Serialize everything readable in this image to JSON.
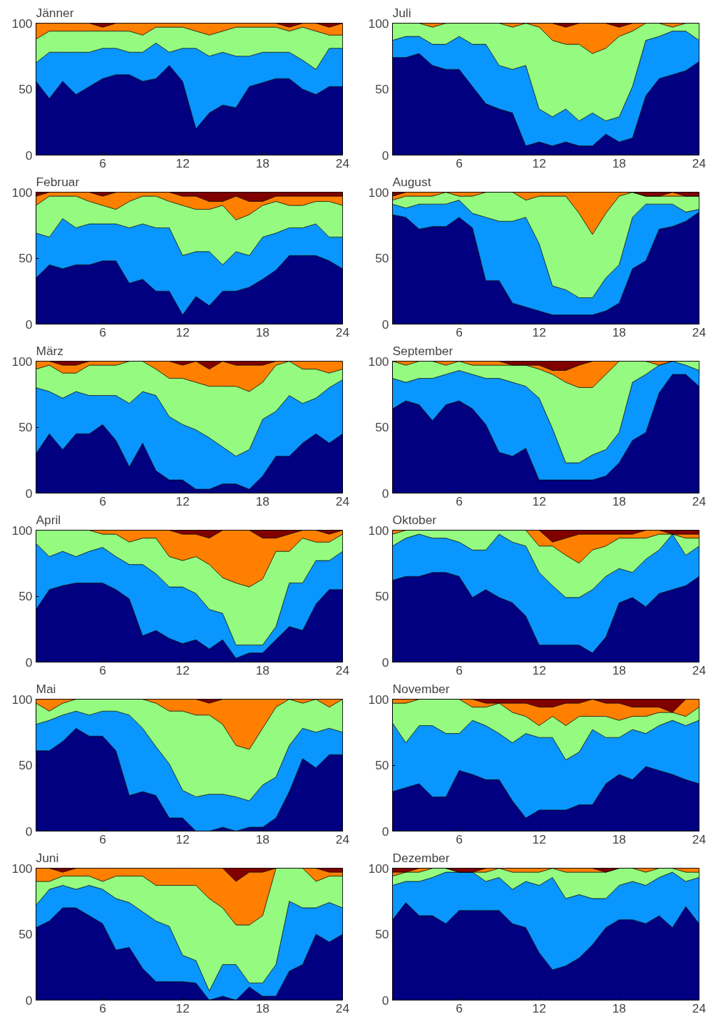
{
  "chart_data": [
    {
      "type": "area",
      "title": "Jänner",
      "stacked": true,
      "x": [
        1,
        2,
        3,
        4,
        5,
        6,
        7,
        8,
        9,
        10,
        11,
        12,
        13,
        14,
        15,
        16,
        17,
        18,
        19,
        20,
        21,
        22,
        23,
        24
      ],
      "xlim": [
        1,
        24
      ],
      "ylim": [
        0,
        100
      ],
      "xticks": [
        6,
        12,
        18,
        24
      ],
      "yticks": [
        0,
        50,
        100
      ],
      "series": [
        {
          "color": "#000080",
          "values": [
            56,
            43,
            56,
            46,
            52,
            58,
            61,
            61,
            56,
            58,
            68,
            56,
            20,
            32,
            38,
            36,
            52,
            55,
            58,
            58,
            50,
            46,
            52,
            52
          ]
        },
        {
          "color": "#0a96ff",
          "values": [
            14,
            35,
            22,
            32,
            26,
            23,
            20,
            17,
            22,
            27,
            10,
            25,
            61,
            43,
            40,
            39,
            23,
            23,
            20,
            20,
            22,
            19,
            29,
            29
          ]
        },
        {
          "color": "#94fb80",
          "values": [
            18,
            16,
            16,
            16,
            16,
            13,
            13,
            16,
            13,
            12,
            19,
            16,
            13,
            16,
            16,
            22,
            22,
            19,
            19,
            16,
            25,
            29,
            10,
            10
          ]
        },
        {
          "color": "#ff8000",
          "values": [
            12,
            6,
            6,
            6,
            6,
            3,
            6,
            6,
            9,
            3,
            3,
            3,
            6,
            9,
            6,
            3,
            3,
            3,
            3,
            3,
            3,
            6,
            6,
            9
          ]
        },
        {
          "color": "#800000",
          "values": [
            0,
            0,
            0,
            0,
            0,
            3,
            0,
            0,
            0,
            0,
            0,
            0,
            0,
            0,
            0,
            0,
            0,
            0,
            0,
            3,
            0,
            0,
            3,
            0
          ]
        }
      ]
    },
    {
      "type": "area",
      "title": "Juli",
      "stacked": true,
      "x": [
        1,
        2,
        3,
        4,
        5,
        6,
        7,
        8,
        9,
        10,
        11,
        12,
        13,
        14,
        15,
        16,
        17,
        18,
        19,
        20,
        21,
        22,
        23,
        24
      ],
      "xlim": [
        1,
        24
      ],
      "ylim": [
        0,
        100
      ],
      "xticks": [
        6,
        12,
        18,
        24
      ],
      "yticks": [
        0,
        50,
        100
      ],
      "series": [
        {
          "color": "#000080",
          "values": [
            74,
            74,
            77,
            68,
            65,
            65,
            52,
            39,
            35,
            32,
            7,
            10,
            7,
            10,
            7,
            7,
            16,
            10,
            13,
            45,
            58,
            61,
            64,
            71
          ]
        },
        {
          "color": "#0a96ff",
          "values": [
            13,
            16,
            13,
            16,
            19,
            25,
            32,
            45,
            33,
            33,
            61,
            25,
            22,
            25,
            19,
            25,
            10,
            19,
            39,
            42,
            32,
            33,
            30,
            16
          ]
        },
        {
          "color": "#94fb80",
          "values": [
            13,
            10,
            10,
            13,
            16,
            10,
            16,
            16,
            32,
            32,
            32,
            62,
            58,
            49,
            58,
            45,
            55,
            61,
            42,
            13,
            10,
            3,
            6,
            13
          ]
        },
        {
          "color": "#ff8000",
          "values": [
            0,
            0,
            0,
            3,
            0,
            0,
            0,
            0,
            0,
            3,
            0,
            3,
            13,
            13,
            16,
            23,
            19,
            7,
            6,
            0,
            0,
            3,
            0,
            0
          ]
        },
        {
          "color": "#800000",
          "values": [
            0,
            0,
            0,
            0,
            0,
            0,
            0,
            0,
            0,
            0,
            0,
            0,
            0,
            3,
            0,
            0,
            0,
            3,
            0,
            0,
            0,
            0,
            0,
            0
          ]
        }
      ]
    },
    {
      "type": "area",
      "title": "Februar",
      "stacked": true,
      "x": [
        1,
        2,
        3,
        4,
        5,
        6,
        7,
        8,
        9,
        10,
        11,
        12,
        13,
        14,
        15,
        16,
        17,
        18,
        19,
        20,
        21,
        22,
        23,
        24
      ],
      "xlim": [
        1,
        24
      ],
      "ylim": [
        0,
        100
      ],
      "xticks": [
        6,
        12,
        18,
        24
      ],
      "yticks": [
        0,
        50,
        100
      ],
      "series": [
        {
          "color": "#000080",
          "values": [
            35,
            45,
            42,
            45,
            45,
            48,
            48,
            31,
            34,
            25,
            25,
            7,
            21,
            14,
            25,
            25,
            28,
            34,
            41,
            52,
            52,
            52,
            48,
            42
          ]
        },
        {
          "color": "#0a96ff",
          "values": [
            34,
            21,
            38,
            28,
            31,
            28,
            28,
            42,
            42,
            48,
            48,
            45,
            34,
            41,
            20,
            30,
            24,
            32,
            28,
            21,
            21,
            24,
            18,
            24
          ]
        },
        {
          "color": "#94fb80",
          "values": [
            21,
            31,
            17,
            24,
            17,
            14,
            11,
            20,
            21,
            24,
            20,
            38,
            32,
            32,
            45,
            24,
            31,
            24,
            24,
            17,
            17,
            17,
            27,
            24
          ]
        },
        {
          "color": "#ff8000",
          "values": [
            7,
            3,
            3,
            3,
            7,
            7,
            13,
            7,
            3,
            3,
            7,
            7,
            10,
            6,
            3,
            18,
            10,
            3,
            4,
            7,
            7,
            4,
            4,
            7
          ]
        },
        {
          "color": "#800000",
          "values": [
            3,
            0,
            0,
            0,
            0,
            3,
            0,
            0,
            0,
            0,
            0,
            3,
            3,
            7,
            7,
            3,
            7,
            7,
            3,
            3,
            3,
            3,
            3,
            3
          ]
        }
      ]
    },
    {
      "type": "area",
      "title": "August",
      "stacked": true,
      "x": [
        1,
        2,
        3,
        4,
        5,
        6,
        7,
        8,
        9,
        10,
        11,
        12,
        13,
        14,
        15,
        16,
        17,
        18,
        19,
        20,
        21,
        22,
        23,
        24
      ],
      "xlim": [
        1,
        24
      ],
      "ylim": [
        0,
        100
      ],
      "xticks": [
        6,
        12,
        18,
        24
      ],
      "yticks": [
        0,
        50,
        100
      ],
      "series": [
        {
          "color": "#000080",
          "values": [
            83,
            81,
            72,
            74,
            74,
            81,
            73,
            33,
            33,
            16,
            13,
            10,
            7,
            7,
            7,
            7,
            10,
            16,
            42,
            48,
            72,
            74,
            78,
            85
          ]
        },
        {
          "color": "#0a96ff",
          "values": [
            8,
            7,
            19,
            17,
            17,
            13,
            11,
            48,
            45,
            62,
            68,
            51,
            22,
            19,
            13,
            13,
            25,
            29,
            39,
            43,
            19,
            17,
            7,
            2
          ]
        },
        {
          "color": "#94fb80",
          "values": [
            3,
            9,
            6,
            6,
            9,
            3,
            13,
            19,
            22,
            22,
            13,
            36,
            68,
            71,
            64,
            48,
            49,
            52,
            19,
            6,
            6,
            6,
            12,
            10
          ]
        },
        {
          "color": "#ff8000",
          "values": [
            3,
            3,
            3,
            3,
            0,
            3,
            3,
            0,
            0,
            0,
            6,
            3,
            3,
            3,
            16,
            32,
            16,
            3,
            0,
            0,
            0,
            3,
            0,
            0
          ]
        },
        {
          "color": "#800000",
          "values": [
            3,
            0,
            0,
            0,
            0,
            0,
            0,
            0,
            0,
            0,
            0,
            0,
            0,
            0,
            0,
            0,
            0,
            0,
            0,
            3,
            3,
            0,
            3,
            3
          ]
        }
      ]
    },
    {
      "type": "area",
      "title": "März",
      "stacked": true,
      "x": [
        1,
        2,
        3,
        4,
        5,
        6,
        7,
        8,
        9,
        10,
        11,
        12,
        13,
        14,
        15,
        16,
        17,
        18,
        19,
        20,
        21,
        22,
        23,
        24
      ],
      "xlim": [
        1,
        24
      ],
      "ylim": [
        0,
        100
      ],
      "xticks": [
        6,
        12,
        18,
        24
      ],
      "yticks": [
        0,
        50,
        100
      ],
      "series": [
        {
          "color": "#000080",
          "values": [
            30,
            45,
            33,
            45,
            45,
            52,
            40,
            20,
            38,
            17,
            10,
            10,
            3,
            3,
            7,
            7,
            3,
            13,
            28,
            28,
            38,
            45,
            38,
            45
          ]
        },
        {
          "color": "#0a96ff",
          "values": [
            50,
            32,
            39,
            32,
            29,
            22,
            34,
            48,
            39,
            57,
            48,
            42,
            45,
            39,
            28,
            21,
            30,
            43,
            34,
            46,
            30,
            27,
            42,
            41
          ]
        },
        {
          "color": "#94fb80",
          "values": [
            14,
            20,
            19,
            14,
            23,
            23,
            23,
            32,
            23,
            20,
            29,
            35,
            36,
            39,
            46,
            53,
            44,
            28,
            35,
            26,
            26,
            22,
            11,
            8
          ]
        },
        {
          "color": "#ff8000",
          "values": [
            6,
            3,
            6,
            6,
            3,
            3,
            3,
            0,
            0,
            6,
            13,
            10,
            16,
            13,
            19,
            16,
            20,
            13,
            3,
            0,
            6,
            6,
            9,
            6
          ]
        },
        {
          "color": "#800000",
          "values": [
            0,
            0,
            3,
            3,
            0,
            0,
            0,
            0,
            0,
            0,
            0,
            3,
            0,
            6,
            0,
            3,
            3,
            3,
            0,
            0,
            0,
            0,
            0,
            0
          ]
        }
      ]
    },
    {
      "type": "area",
      "title": "September",
      "stacked": true,
      "x": [
        1,
        2,
        3,
        4,
        5,
        6,
        7,
        8,
        9,
        10,
        11,
        12,
        13,
        14,
        15,
        16,
        17,
        18,
        19,
        20,
        21,
        22,
        23,
        24
      ],
      "xlim": [
        1,
        24
      ],
      "ylim": [
        0,
        100
      ],
      "xticks": [
        6,
        12,
        18,
        24
      ],
      "yticks": [
        0,
        50,
        100
      ],
      "series": [
        {
          "color": "#000080",
          "values": [
            64,
            70,
            67,
            55,
            67,
            70,
            64,
            52,
            31,
            28,
            34,
            10,
            10,
            10,
            10,
            10,
            13,
            23,
            40,
            46,
            76,
            90,
            90,
            81
          ]
        },
        {
          "color": "#0a96ff",
          "values": [
            23,
            14,
            20,
            32,
            23,
            23,
            26,
            35,
            56,
            56,
            47,
            62,
            39,
            13,
            13,
            19,
            20,
            23,
            44,
            44,
            21,
            10,
            7,
            12
          ]
        },
        {
          "color": "#94fb80",
          "values": [
            13,
            13,
            13,
            13,
            7,
            7,
            7,
            10,
            10,
            13,
            16,
            22,
            41,
            61,
            57,
            51,
            57,
            54,
            16,
            10,
            0,
            0,
            3,
            7
          ]
        },
        {
          "color": "#ff8000",
          "values": [
            0,
            3,
            0,
            0,
            3,
            0,
            3,
            3,
            3,
            0,
            0,
            3,
            3,
            9,
            17,
            20,
            10,
            0,
            0,
            0,
            3,
            0,
            0,
            0
          ]
        },
        {
          "color": "#800000",
          "values": [
            0,
            0,
            0,
            0,
            0,
            0,
            0,
            0,
            0,
            3,
            3,
            3,
            7,
            7,
            3,
            0,
            0,
            0,
            0,
            0,
            0,
            0,
            0,
            0
          ]
        }
      ]
    },
    {
      "type": "area",
      "title": "April",
      "stacked": true,
      "x": [
        1,
        2,
        3,
        4,
        5,
        6,
        7,
        8,
        9,
        10,
        11,
        12,
        13,
        14,
        15,
        16,
        17,
        18,
        19,
        20,
        21,
        22,
        23,
        24
      ],
      "xlim": [
        1,
        24
      ],
      "ylim": [
        0,
        100
      ],
      "xticks": [
        6,
        12,
        18,
        24
      ],
      "yticks": [
        0,
        50,
        100
      ],
      "series": [
        {
          "color": "#000080",
          "values": [
            40,
            55,
            58,
            60,
            60,
            60,
            55,
            48,
            20,
            24,
            18,
            14,
            17,
            10,
            17,
            3,
            7,
            7,
            17,
            27,
            24,
            44,
            55,
            55
          ]
        },
        {
          "color": "#0a96ff",
          "values": [
            50,
            25,
            26,
            20,
            24,
            27,
            25,
            26,
            54,
            43,
            39,
            43,
            35,
            30,
            20,
            10,
            6,
            6,
            10,
            33,
            36,
            33,
            22,
            29
          ]
        },
        {
          "color": "#94fb80",
          "values": [
            10,
            20,
            16,
            20,
            16,
            10,
            17,
            17,
            20,
            27,
            23,
            20,
            28,
            34,
            27,
            47,
            44,
            50,
            57,
            24,
            34,
            14,
            14,
            13
          ]
        },
        {
          "color": "#ff8000",
          "values": [
            0,
            0,
            0,
            0,
            0,
            3,
            3,
            9,
            6,
            6,
            20,
            20,
            17,
            20,
            36,
            40,
            43,
            31,
            10,
            13,
            6,
            9,
            6,
            3
          ]
        },
        {
          "color": "#800000",
          "values": [
            0,
            0,
            0,
            0,
            0,
            0,
            0,
            0,
            0,
            0,
            0,
            3,
            3,
            6,
            0,
            0,
            0,
            6,
            6,
            3,
            0,
            0,
            3,
            0
          ]
        }
      ]
    },
    {
      "type": "area",
      "title": "Oktober",
      "stacked": true,
      "x": [
        1,
        2,
        3,
        4,
        5,
        6,
        7,
        8,
        9,
        10,
        11,
        12,
        13,
        14,
        15,
        16,
        17,
        18,
        19,
        20,
        21,
        22,
        23,
        24
      ],
      "xlim": [
        1,
        24
      ],
      "ylim": [
        0,
        100
      ],
      "xticks": [
        6,
        12,
        18,
        24
      ],
      "yticks": [
        0,
        50,
        100
      ],
      "series": [
        {
          "color": "#000080",
          "values": [
            62,
            65,
            65,
            68,
            68,
            65,
            49,
            55,
            49,
            45,
            35,
            13,
            13,
            13,
            13,
            7,
            19,
            45,
            49,
            42,
            52,
            55,
            58,
            65
          ]
        },
        {
          "color": "#0a96ff",
          "values": [
            26,
            29,
            32,
            26,
            26,
            26,
            36,
            30,
            48,
            46,
            53,
            55,
            45,
            36,
            36,
            48,
            46,
            26,
            19,
            36,
            33,
            42,
            23,
            23
          ]
        },
        {
          "color": "#94fb80",
          "values": [
            9,
            6,
            3,
            6,
            6,
            9,
            15,
            15,
            3,
            9,
            12,
            20,
            30,
            32,
            26,
            30,
            23,
            23,
            26,
            16,
            12,
            0,
            13,
            6
          ]
        },
        {
          "color": "#ff8000",
          "values": [
            3,
            0,
            0,
            0,
            0,
            0,
            0,
            0,
            0,
            0,
            0,
            12,
            3,
            13,
            22,
            12,
            9,
            3,
            3,
            6,
            3,
            0,
            3,
            3
          ]
        },
        {
          "color": "#800000",
          "values": [
            0,
            0,
            0,
            0,
            0,
            0,
            0,
            0,
            0,
            0,
            0,
            0,
            9,
            6,
            3,
            3,
            3,
            3,
            3,
            0,
            0,
            3,
            3,
            3
          ]
        }
      ]
    },
    {
      "type": "area",
      "title": "Mai",
      "stacked": true,
      "x": [
        1,
        2,
        3,
        4,
        5,
        6,
        7,
        8,
        9,
        10,
        11,
        12,
        13,
        14,
        15,
        16,
        17,
        18,
        19,
        20,
        21,
        22,
        23,
        24
      ],
      "xlim": [
        1,
        24
      ],
      "ylim": [
        0,
        100
      ],
      "xticks": [
        6,
        12,
        18,
        24
      ],
      "yticks": [
        0,
        50,
        100
      ],
      "series": [
        {
          "color": "#000080",
          "values": [
            61,
            61,
            68,
            78,
            72,
            72,
            61,
            27,
            30,
            27,
            10,
            10,
            0,
            0,
            3,
            0,
            3,
            3,
            10,
            30,
            55,
            48,
            58,
            58
          ]
        },
        {
          "color": "#0a96ff",
          "values": [
            20,
            23,
            20,
            13,
            16,
            19,
            30,
            61,
            48,
            37,
            41,
            21,
            26,
            28,
            25,
            26,
            20,
            32,
            31,
            35,
            23,
            27,
            20,
            17
          ]
        },
        {
          "color": "#94fb80",
          "values": [
            16,
            7,
            9,
            9,
            12,
            9,
            9,
            12,
            22,
            33,
            40,
            60,
            62,
            60,
            53,
            39,
            39,
            43,
            53,
            35,
            19,
            25,
            16,
            25
          ]
        },
        {
          "color": "#ff8000",
          "values": [
            3,
            9,
            3,
            0,
            0,
            0,
            0,
            0,
            0,
            3,
            9,
            9,
            12,
            9,
            19,
            35,
            38,
            22,
            6,
            0,
            3,
            0,
            6,
            0
          ]
        },
        {
          "color": "#800000",
          "values": [
            0,
            0,
            0,
            0,
            0,
            0,
            0,
            0,
            0,
            0,
            0,
            0,
            0,
            3,
            0,
            0,
            0,
            0,
            0,
            0,
            0,
            0,
            0,
            0
          ]
        }
      ]
    },
    {
      "type": "area",
      "title": "November",
      "stacked": true,
      "x": [
        1,
        2,
        3,
        4,
        5,
        6,
        7,
        8,
        9,
        10,
        11,
        12,
        13,
        14,
        15,
        16,
        17,
        18,
        19,
        20,
        21,
        22,
        23,
        24
      ],
      "xlim": [
        1,
        24
      ],
      "ylim": [
        0,
        100
      ],
      "xticks": [
        6,
        12,
        18,
        24
      ],
      "yticks": [
        0,
        50,
        100
      ],
      "series": [
        {
          "color": "#000080",
          "values": [
            30,
            33,
            36,
            26,
            26,
            46,
            43,
            39,
            39,
            23,
            10,
            16,
            16,
            16,
            20,
            20,
            36,
            43,
            39,
            49,
            46,
            43,
            39,
            36
          ]
        },
        {
          "color": "#0a96ff",
          "values": [
            52,
            34,
            44,
            54,
            48,
            28,
            41,
            41,
            35,
            44,
            64,
            55,
            55,
            38,
            40,
            57,
            35,
            28,
            38,
            25,
            34,
            41,
            41,
            48
          ]
        },
        {
          "color": "#94fb80",
          "values": [
            15,
            30,
            20,
            20,
            26,
            26,
            10,
            14,
            23,
            23,
            13,
            9,
            16,
            26,
            27,
            10,
            16,
            13,
            10,
            13,
            10,
            6,
            7,
            10
          ]
        },
        {
          "color": "#ff8000",
          "values": [
            3,
            3,
            0,
            0,
            0,
            0,
            6,
            3,
            0,
            7,
            10,
            14,
            7,
            17,
            10,
            13,
            10,
            13,
            7,
            7,
            4,
            0,
            13,
            6
          ]
        },
        {
          "color": "#800000",
          "values": [
            0,
            0,
            0,
            0,
            0,
            0,
            0,
            3,
            3,
            3,
            3,
            6,
            6,
            3,
            3,
            0,
            3,
            3,
            6,
            6,
            6,
            10,
            0,
            0
          ]
        }
      ]
    },
    {
      "type": "area",
      "title": "Juni",
      "stacked": true,
      "x": [
        1,
        2,
        3,
        4,
        5,
        6,
        7,
        8,
        9,
        10,
        11,
        12,
        13,
        14,
        15,
        16,
        17,
        18,
        19,
        20,
        21,
        22,
        23,
        24
      ],
      "xlim": [
        1,
        24
      ],
      "ylim": [
        0,
        100
      ],
      "xticks": [
        6,
        12,
        18,
        24
      ],
      "yticks": [
        0,
        50,
        100
      ],
      "series": [
        {
          "color": "#000080",
          "values": [
            55,
            60,
            70,
            70,
            64,
            58,
            38,
            40,
            24,
            14,
            14,
            14,
            13,
            0,
            3,
            0,
            10,
            3,
            3,
            22,
            27,
            50,
            44,
            50
          ]
        },
        {
          "color": "#0a96ff",
          "values": [
            17,
            24,
            17,
            14,
            23,
            26,
            39,
            34,
            43,
            46,
            42,
            20,
            17,
            7,
            24,
            27,
            3,
            10,
            24,
            53,
            43,
            20,
            30,
            20
          ]
        },
        {
          "color": "#94fb80",
          "values": [
            18,
            6,
            7,
            10,
            7,
            6,
            17,
            20,
            27,
            27,
            31,
            53,
            57,
            70,
            43,
            30,
            44,
            51,
            73,
            25,
            30,
            20,
            20,
            24
          ]
        },
        {
          "color": "#ff8000",
          "values": [
            10,
            10,
            3,
            6,
            6,
            10,
            6,
            6,
            6,
            13,
            13,
            13,
            13,
            23,
            30,
            33,
            40,
            33,
            0,
            0,
            0,
            10,
            3,
            3
          ]
        },
        {
          "color": "#800000",
          "values": [
            0,
            0,
            3,
            0,
            0,
            0,
            0,
            0,
            0,
            0,
            0,
            0,
            0,
            0,
            0,
            10,
            3,
            3,
            0,
            0,
            0,
            0,
            3,
            3
          ]
        }
      ]
    },
    {
      "type": "area",
      "title": "Dezember",
      "stacked": true,
      "x": [
        1,
        2,
        3,
        4,
        5,
        6,
        7,
        8,
        9,
        10,
        11,
        12,
        13,
        14,
        15,
        16,
        17,
        18,
        19,
        20,
        21,
        22,
        23,
        24
      ],
      "xlim": [
        1,
        24
      ],
      "ylim": [
        0,
        100
      ],
      "xticks": [
        6,
        12,
        18,
        24
      ],
      "yticks": [
        0,
        50,
        100
      ],
      "series": [
        {
          "color": "#000080",
          "values": [
            61,
            74,
            64,
            64,
            58,
            68,
            68,
            68,
            68,
            58,
            55,
            36,
            23,
            26,
            32,
            42,
            55,
            61,
            61,
            58,
            64,
            55,
            71,
            58
          ]
        },
        {
          "color": "#0a96ff",
          "values": [
            26,
            16,
            26,
            29,
            39,
            29,
            29,
            22,
            25,
            26,
            35,
            51,
            70,
            51,
            48,
            35,
            22,
            26,
            29,
            29,
            29,
            42,
            19,
            35
          ]
        },
        {
          "color": "#94fb80",
          "values": [
            7,
            7,
            7,
            7,
            3,
            0,
            0,
            7,
            7,
            13,
            7,
            10,
            7,
            20,
            17,
            20,
            20,
            13,
            10,
            10,
            7,
            3,
            7,
            4
          ]
        },
        {
          "color": "#ff8000",
          "values": [
            3,
            0,
            3,
            0,
            0,
            0,
            0,
            3,
            0,
            3,
            3,
            3,
            0,
            3,
            3,
            3,
            0,
            0,
            0,
            3,
            0,
            0,
            3,
            3
          ]
        },
        {
          "color": "#800000",
          "values": [
            3,
            3,
            0,
            0,
            0,
            3,
            3,
            0,
            0,
            0,
            0,
            0,
            0,
            0,
            0,
            0,
            3,
            0,
            0,
            0,
            0,
            0,
            0,
            0
          ]
        }
      ]
    }
  ]
}
